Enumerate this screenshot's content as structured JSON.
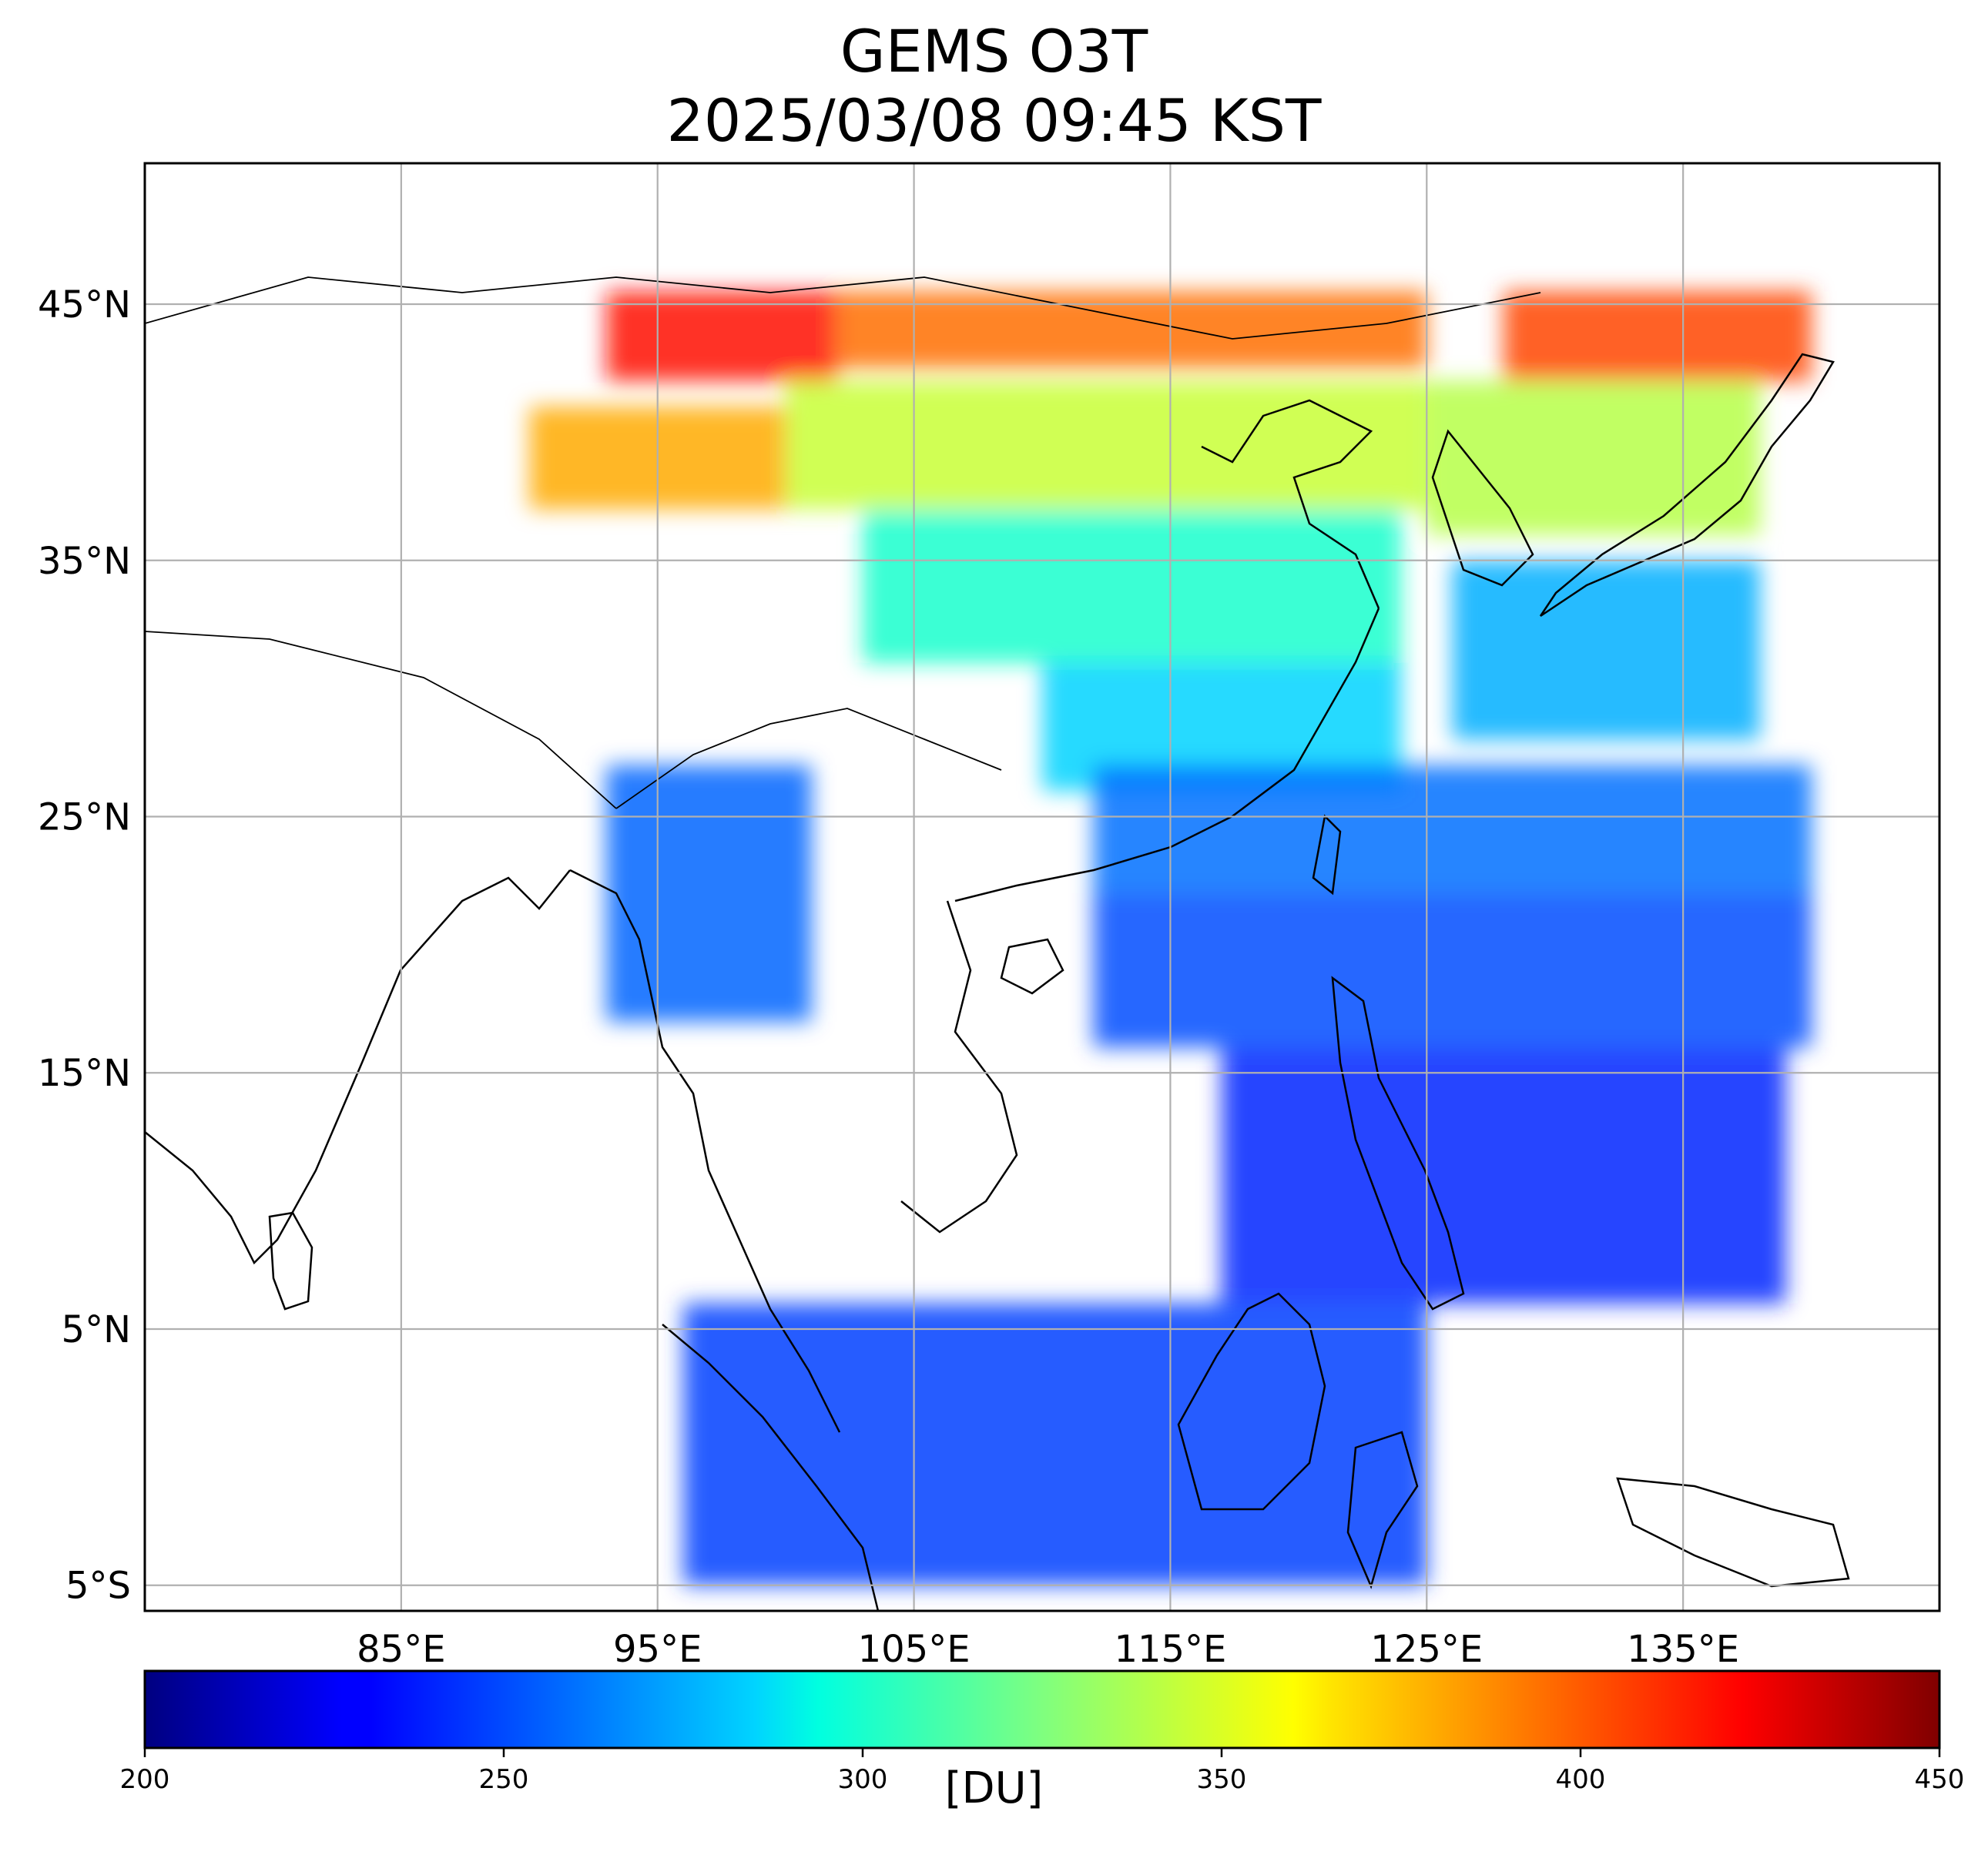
{
  "title": {
    "line1": "GEMS O3T",
    "line2": "2025/03/08 09:45 KST"
  },
  "map": {
    "lon_range": [
      75,
      145
    ],
    "lat_range": [
      -6,
      50.5
    ],
    "lon_ticks": [
      {
        "value": 85,
        "label": "85°E"
      },
      {
        "value": 95,
        "label": "95°E"
      },
      {
        "value": 105,
        "label": "105°E"
      },
      {
        "value": 115,
        "label": "115°E"
      },
      {
        "value": 125,
        "label": "125°E"
      },
      {
        "value": 135,
        "label": "135°E"
      }
    ],
    "lat_ticks": [
      {
        "value": 45,
        "label": "45°N"
      },
      {
        "value": 35,
        "label": "35°N"
      },
      {
        "value": 25,
        "label": "25°N"
      },
      {
        "value": 15,
        "label": "15°N"
      },
      {
        "value": 5,
        "label": "5°N"
      },
      {
        "value": -5,
        "label": "5°S"
      }
    ],
    "grid": true
  },
  "colorbar": {
    "colormap": "jet",
    "min": 200,
    "max": 450,
    "ticks": [
      200,
      250,
      300,
      350,
      400,
      450
    ],
    "unit_label": "[DU]"
  },
  "chart_data": {
    "type": "heatmap",
    "title": "GEMS O3T\n2025/03/08 09:45 KST",
    "xlabel": "",
    "ylabel": "",
    "xlim": [
      75,
      145
    ],
    "ylim": [
      -6,
      50.5
    ],
    "value_range": [
      200,
      450
    ],
    "value_unit": "[DU]",
    "regions": [
      {
        "lon": [
          93,
          102
        ],
        "lat": [
          42,
          45.5
        ],
        "value": 420
      },
      {
        "lon": [
          102,
          125
        ],
        "lat": [
          42.5,
          45.5
        ],
        "value": 395
      },
      {
        "lon": [
          128,
          140
        ],
        "lat": [
          42,
          45.5
        ],
        "value": 405
      },
      {
        "lon": [
          90,
          100
        ],
        "lat": [
          37,
          41
        ],
        "value": 380
      },
      {
        "lon": [
          100,
          125
        ],
        "lat": [
          37,
          42
        ],
        "value": 345
      },
      {
        "lon": [
          125,
          138
        ],
        "lat": [
          36,
          42
        ],
        "value": 340
      },
      {
        "lon": [
          103,
          124
        ],
        "lat": [
          31,
          37
        ],
        "value": 300
      },
      {
        "lon": [
          110,
          124
        ],
        "lat": [
          26,
          31
        ],
        "value": 285
      },
      {
        "lon": [
          126,
          138
        ],
        "lat": [
          28,
          35
        ],
        "value": 275
      },
      {
        "lon": [
          93,
          101
        ],
        "lat": [
          17,
          27
        ],
        "value": 255
      },
      {
        "lon": [
          112,
          140
        ],
        "lat": [
          22,
          27
        ],
        "value": 258
      },
      {
        "lon": [
          112,
          140
        ],
        "lat": [
          16,
          22
        ],
        "value": 248
      },
      {
        "lon": [
          117,
          139
        ],
        "lat": [
          6,
          16
        ],
        "value": 238
      },
      {
        "lon": [
          96,
          125
        ],
        "lat": [
          -5,
          6
        ],
        "value": 245
      }
    ]
  }
}
